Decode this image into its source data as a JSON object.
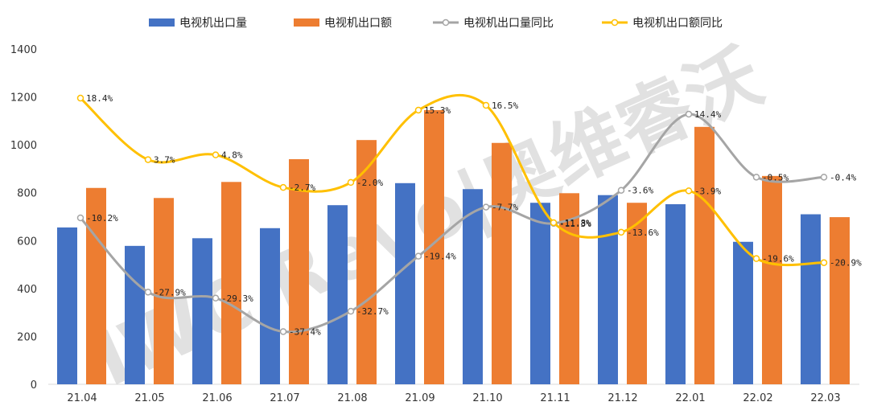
{
  "chart_data": {
    "type": "bar",
    "title": "",
    "xlabel": "",
    "ylabel": "",
    "ylim": [
      0,
      1400
    ],
    "yticks": [
      0,
      200,
      400,
      600,
      800,
      1000,
      1200,
      1400
    ],
    "grid": false,
    "legend_position": "top",
    "categories": [
      "21.04",
      "21.05",
      "21.06",
      "21.07",
      "21.08",
      "21.09",
      "21.10",
      "21.11",
      "21.12",
      "22.01",
      "22.02",
      "22.03"
    ],
    "series": [
      {
        "name": "电视机出口量",
        "kind": "bar",
        "color": "#4472C4",
        "values": [
          655,
          578,
          610,
          652,
          748,
          840,
          815,
          758,
          790,
          752,
          595,
          710
        ]
      },
      {
        "name": "电视机出口额",
        "kind": "bar",
        "color": "#ED7D31",
        "values": [
          820,
          778,
          845,
          940,
          1020,
          1145,
          1008,
          798,
          758,
          1075,
          870,
          698
        ]
      },
      {
        "name": "电视机出口量同比",
        "kind": "line",
        "color": "#A5A5A5",
        "y_positions_on_axis": [
          695,
          385,
          360,
          220,
          305,
          535,
          740,
          672,
          810,
          1128,
          865,
          865
        ],
        "labels": [
          "-10.2%",
          "-27.9%",
          "-29.3%",
          "-37.4%",
          "-32.7%",
          "-19.4%",
          "-7.7%",
          "-11.3%",
          "-3.6%",
          "14.4%",
          "-0.5%",
          "-0.4%"
        ]
      },
      {
        "name": "电视机出口额同比",
        "kind": "line",
        "color": "#FFC000",
        "y_positions_on_axis": [
          1195,
          938,
          958,
          822,
          843,
          1145,
          1165,
          675,
          635,
          808,
          525,
          508
        ],
        "labels": [
          "18.4%",
          "3.7%",
          "4.8%",
          "-2.7%",
          "-2.0%",
          "15.3%",
          "16.5%",
          "-11.8%",
          "-13.6%",
          "-3.9%",
          "-19.6%",
          "-20.9%"
        ]
      }
    ]
  },
  "watermark": {
    "text": "IWC Revo|奥维睿沃",
    "color": "#c9c9c9"
  }
}
